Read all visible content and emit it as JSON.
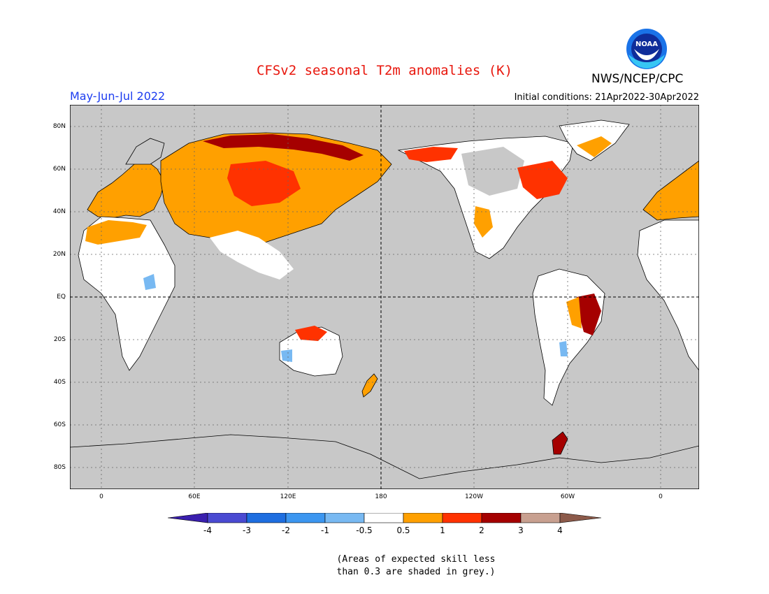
{
  "title": "CFSv2 seasonal T2m anomalies (K)",
  "period": "May-Jun-Jul 2022",
  "initial_conditions": "Initial conditions: 21Apr2022-30Apr2022",
  "agency": "NWS/NCEP/CPC",
  "logo_text": "NOAA",
  "colors": {
    "title": "#e8160c",
    "period": "#1c3cf0",
    "sea": "#c8c8c8",
    "land_low_skill": "#c8c8c8",
    "land_neutral": "#ffffff"
  },
  "map": {
    "lat_labels": [
      {
        "label": "80N",
        "lat": 80
      },
      {
        "label": "60N",
        "lat": 60
      },
      {
        "label": "40N",
        "lat": 40
      },
      {
        "label": "20N",
        "lat": 20
      },
      {
        "label": "EQ",
        "lat": 0
      },
      {
        "label": "20S",
        "lat": -20
      },
      {
        "label": "40S",
        "lat": -40
      },
      {
        "label": "60S",
        "lat": -60
      },
      {
        "label": "80S",
        "lat": -80
      }
    ],
    "lon_labels": [
      {
        "label": "0",
        "lon": 0
      },
      {
        "label": "60E",
        "lon": 60
      },
      {
        "label": "120E",
        "lon": 120
      },
      {
        "label": "180",
        "lon": 180
      },
      {
        "label": "120W",
        "lon": 240
      },
      {
        "label": "60W",
        "lon": 300
      },
      {
        "label": "0",
        "lon": 360
      }
    ]
  },
  "colorbar": {
    "levels": [
      "-4",
      "-3",
      "-2",
      "-1",
      "-0.5",
      "0.5",
      "1",
      "2",
      "3",
      "4"
    ],
    "colors": [
      "#3a1fae",
      "#4a4ad2",
      "#1e6ee0",
      "#3c96f0",
      "#78b9f2",
      "#ffffff",
      "#ffa000",
      "#ff3200",
      "#a50000",
      "#c8a090",
      "#8c5a4a"
    ]
  },
  "note": {
    "line1": "(Areas of expected skill less",
    "line2": "than 0.3 are shaded in grey.)"
  }
}
